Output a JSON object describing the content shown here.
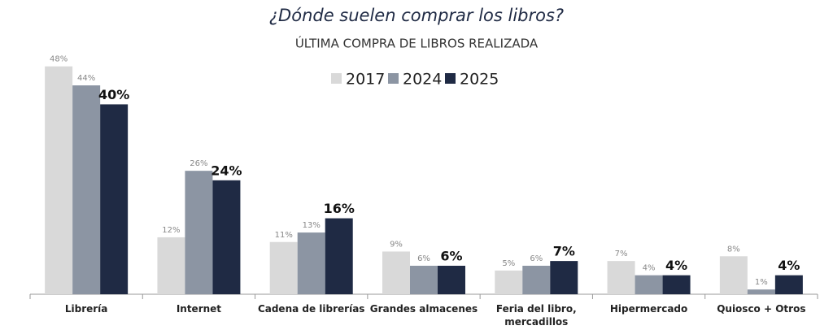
{
  "chart_data": {
    "type": "bar",
    "title": "¿Dónde suelen comprar los libros?",
    "subtitle": "ÚLTIMA COMPRA DE LIBROS REALIZADA",
    "categories": [
      "Librería",
      "Internet",
      "Cadena de librerías",
      "Grandes almacenes",
      "Feria del libro, mercadillos",
      "Hipermercado",
      "Quiosco + Otros"
    ],
    "series": [
      {
        "name": "2017",
        "color": "#d9d9d9",
        "values": [
          48,
          12,
          11,
          9,
          5,
          7,
          8
        ],
        "value_labels": [
          "48%",
          "12%",
          "11%",
          "9%",
          "5%",
          "7%",
          "8%"
        ]
      },
      {
        "name": "2024",
        "color": "#8c95a3",
        "values": [
          44,
          26,
          13,
          6,
          6,
          4,
          1
        ],
        "value_labels": [
          "44%",
          "26%",
          "13%",
          "6%",
          "6%",
          "4%",
          "1%"
        ]
      },
      {
        "name": "2025",
        "color": "#1f2a44",
        "values": [
          40,
          24,
          16,
          6,
          7,
          4,
          4
        ],
        "value_labels": [
          "40%",
          "24%",
          "16%",
          "6%",
          "7%",
          "4%",
          "4%"
        ]
      }
    ],
    "ylim": [
      0,
      50
    ],
    "legend": "top"
  }
}
